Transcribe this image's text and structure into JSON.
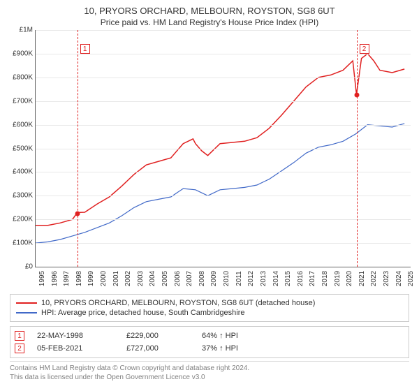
{
  "title_line1": "10, PRYORS ORCHARD, MELBOURN, ROYSTON, SG8 6UT",
  "title_line2": "Price paid vs. HM Land Registry's House Price Index (HPI)",
  "chart": {
    "type": "line",
    "background_color": "#ffffff",
    "grid_color": "#e8e8e8",
    "axis_color": "#666666",
    "label_fontsize": 10,
    "x_min": 1995,
    "x_max": 2025.5,
    "x_ticks": [
      1995,
      1996,
      1997,
      1998,
      1999,
      2000,
      2001,
      2002,
      2003,
      2004,
      2005,
      2006,
      2007,
      2008,
      2009,
      2010,
      2011,
      2012,
      2013,
      2014,
      2015,
      2016,
      2017,
      2018,
      2019,
      2020,
      2021,
      2022,
      2023,
      2024,
      2025
    ],
    "y_min": 0,
    "y_max": 1000000,
    "y_ticks": [
      {
        "v": 0,
        "label": "£0"
      },
      {
        "v": 100000,
        "label": "£100K"
      },
      {
        "v": 200000,
        "label": "£200K"
      },
      {
        "v": 300000,
        "label": "£300K"
      },
      {
        "v": 400000,
        "label": "£400K"
      },
      {
        "v": 500000,
        "label": "£500K"
      },
      {
        "v": 600000,
        "label": "£600K"
      },
      {
        "v": 700000,
        "label": "£700K"
      },
      {
        "v": 800000,
        "label": "£800K"
      },
      {
        "v": 900000,
        "label": "£900K"
      },
      {
        "v": 1000000,
        "label": "£1M"
      }
    ],
    "series": [
      {
        "name": "property",
        "color": "#e02020",
        "width": 1.5,
        "data": [
          [
            1995,
            175000
          ],
          [
            1996,
            175000
          ],
          [
            1997,
            185000
          ],
          [
            1998,
            200000
          ],
          [
            1998.39,
            229000
          ],
          [
            1999,
            230000
          ],
          [
            2000,
            265000
          ],
          [
            2001,
            295000
          ],
          [
            2002,
            340000
          ],
          [
            2003,
            390000
          ],
          [
            2004,
            430000
          ],
          [
            2005,
            445000
          ],
          [
            2006,
            460000
          ],
          [
            2007,
            520000
          ],
          [
            2007.8,
            540000
          ],
          [
            2008,
            520000
          ],
          [
            2008.5,
            490000
          ],
          [
            2009,
            470000
          ],
          [
            2009.5,
            495000
          ],
          [
            2010,
            520000
          ],
          [
            2011,
            525000
          ],
          [
            2012,
            530000
          ],
          [
            2013,
            545000
          ],
          [
            2014,
            585000
          ],
          [
            2015,
            640000
          ],
          [
            2016,
            700000
          ],
          [
            2017,
            760000
          ],
          [
            2018,
            800000
          ],
          [
            2019,
            810000
          ],
          [
            2020,
            830000
          ],
          [
            2020.8,
            870000
          ],
          [
            2021.1,
            727000
          ],
          [
            2021.5,
            880000
          ],
          [
            2022,
            900000
          ],
          [
            2022.5,
            870000
          ],
          [
            2023,
            830000
          ],
          [
            2024,
            820000
          ],
          [
            2025,
            835000
          ]
        ]
      },
      {
        "name": "hpi",
        "color": "#4169c8",
        "width": 1.2,
        "data": [
          [
            1995,
            100000
          ],
          [
            1996,
            105000
          ],
          [
            1997,
            115000
          ],
          [
            1998,
            130000
          ],
          [
            1999,
            145000
          ],
          [
            2000,
            165000
          ],
          [
            2001,
            185000
          ],
          [
            2002,
            215000
          ],
          [
            2003,
            250000
          ],
          [
            2004,
            275000
          ],
          [
            2005,
            285000
          ],
          [
            2006,
            295000
          ],
          [
            2007,
            330000
          ],
          [
            2008,
            325000
          ],
          [
            2009,
            300000
          ],
          [
            2010,
            325000
          ],
          [
            2011,
            330000
          ],
          [
            2012,
            335000
          ],
          [
            2013,
            345000
          ],
          [
            2014,
            370000
          ],
          [
            2015,
            405000
          ],
          [
            2016,
            440000
          ],
          [
            2017,
            480000
          ],
          [
            2018,
            505000
          ],
          [
            2019,
            515000
          ],
          [
            2020,
            530000
          ],
          [
            2021,
            560000
          ],
          [
            2022,
            600000
          ],
          [
            2023,
            595000
          ],
          [
            2024,
            590000
          ],
          [
            2025,
            605000
          ]
        ]
      }
    ],
    "markers": [
      {
        "n": "1",
        "x": 1998.39,
        "box_y": 940000,
        "dot_y": 225000
      },
      {
        "n": "2",
        "x": 2021.1,
        "box_y": 940000,
        "dot_y": 727000
      }
    ]
  },
  "legend": {
    "items": [
      {
        "color": "#e02020",
        "label": "10, PRYORS ORCHARD, MELBOURN, ROYSTON, SG8 6UT (detached house)"
      },
      {
        "color": "#4169c8",
        "label": "HPI: Average price, detached house, South Cambridgeshire"
      }
    ]
  },
  "sales": [
    {
      "n": "1",
      "date": "22-MAY-1998",
      "price": "£229,000",
      "pct": "64% ↑ HPI"
    },
    {
      "n": "2",
      "date": "05-FEB-2021",
      "price": "£727,000",
      "pct": "37% ↑ HPI"
    }
  ],
  "attribution": {
    "line1": "Contains HM Land Registry data © Crown copyright and database right 2024.",
    "line2": "This data is licensed under the Open Government Licence v3.0"
  }
}
